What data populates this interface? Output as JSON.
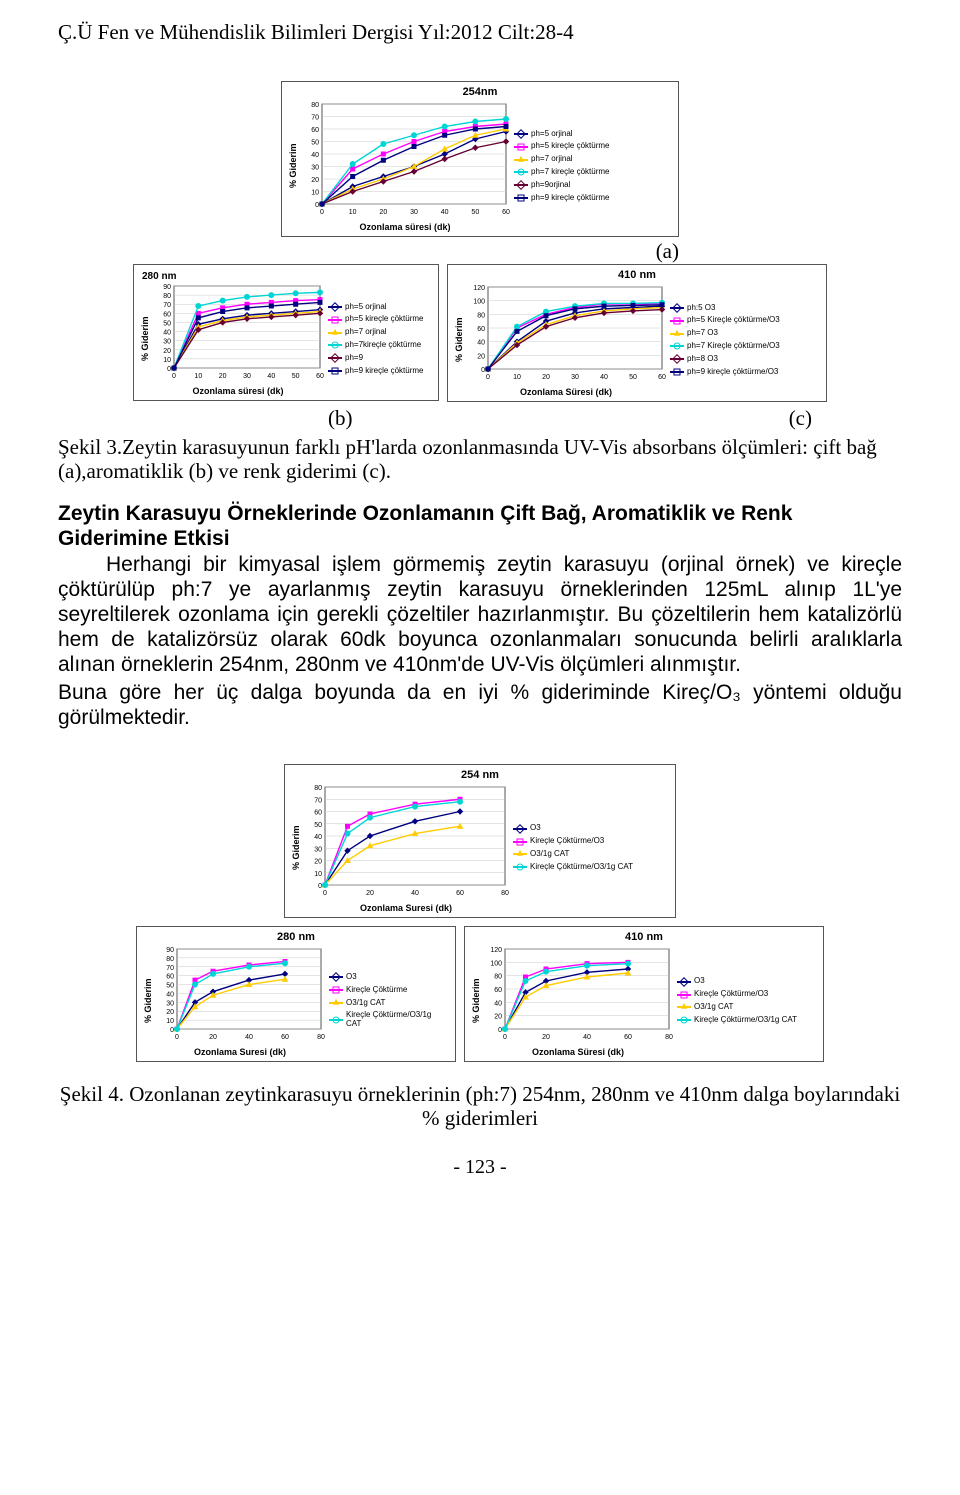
{
  "journal_header": "Ç.Ü Fen ve  Mühendislik Bilimleri Dergisi Yıl:2012  Cilt:28-4",
  "labels": {
    "a": "(a)",
    "b": "(b)",
    "c": "(c)"
  },
  "caption3_prefix": "Şekil 3.",
  "caption3_rest": "Zeytin karasuyunun farklı pH'larda ozonlanmasında UV-Vis absorbans ölçümleri: çift bağ (a),aromatiklik (b) ve renk giderimi (c).",
  "section_heading": "Zeytin Karasuyu Örneklerinde Ozonlamanın Çift Bağ, Aromatiklik ve Renk Giderimine Etkisi",
  "paragraph1": "Herhangi bir kimyasal işlem görmemiş zeytin karasuyu (orjinal örnek) ve kireçle çöktürülüp ph:7 ye ayarlanmış zeytin karasuyu örneklerinden 125mL alınıp 1L'ye seyreltilerek ozonlama için gerekli çözeltiler hazırlanmıştır. Bu çözeltilerin hem katalizörlü hem de katalizörsüz olarak 60dk boyunca ozonlanmaları sonucunda belirli aralıklarla alınan örneklerin 254nm, 280nm ve 410nm'de UV-Vis ölçümleri alınmıştır.",
  "paragraph2": "Buna göre her üç dalga boyunda da en iyi % gideriminde Kireç/O₃ yöntemi olduğu görülmektedir.",
  "caption4": "Şekil 4. Ozonlanan zeytinkarasuyu örneklerinin (ph:7) 254nm, 280nm ve 410nm dalga boylarındaki  % giderimleri",
  "page_number": "- 123 -",
  "axis": {
    "x_label_dk": "Ozonlama süresi (dk)",
    "x_label_Dk": "Ozonlama Süresi (dk)",
    "x_label_suresi": "Ozonlama Suresi (dk)",
    "y_label": "% Giderim"
  },
  "colors": {
    "navy": "#000080",
    "magenta": "#ff00ff",
    "yellow": "#ffcc00",
    "cyan": "#00d5d5",
    "darkred": "#660033",
    "grid": "#c8c8c8",
    "border": "#555555",
    "text": "#000000"
  },
  "chart_254_a": {
    "title": "254nm",
    "xlim": [
      0,
      60
    ],
    "xtick": 10,
    "ylim": [
      0,
      80
    ],
    "ytick": 10,
    "series": [
      {
        "label": "ph=5 orjinal",
        "color": "#000080",
        "marker": "di",
        "data": [
          [
            0,
            0
          ],
          [
            10,
            14
          ],
          [
            20,
            22
          ],
          [
            30,
            30
          ],
          [
            40,
            40
          ],
          [
            50,
            52
          ],
          [
            60,
            58
          ]
        ]
      },
      {
        "label": "ph=5 kireçle çöktürme",
        "color": "#ff00ff",
        "marker": "sq",
        "data": [
          [
            0,
            0
          ],
          [
            10,
            28
          ],
          [
            20,
            40
          ],
          [
            30,
            50
          ],
          [
            40,
            58
          ],
          [
            50,
            62
          ],
          [
            60,
            64
          ]
        ]
      },
      {
        "label": "ph=7 orjinal",
        "color": "#ffcc00",
        "marker": "tr",
        "data": [
          [
            0,
            0
          ],
          [
            10,
            12
          ],
          [
            20,
            20
          ],
          [
            30,
            30
          ],
          [
            40,
            44
          ],
          [
            50,
            55
          ],
          [
            60,
            60
          ]
        ]
      },
      {
        "label": "ph=7 kireçle çöktürme",
        "color": "#00d5d5",
        "marker": "ci",
        "data": [
          [
            0,
            0
          ],
          [
            10,
            32
          ],
          [
            20,
            48
          ],
          [
            30,
            55
          ],
          [
            40,
            62
          ],
          [
            50,
            66
          ],
          [
            60,
            68
          ]
        ]
      },
      {
        "label": "ph=9orjinal",
        "color": "#660033",
        "marker": "di",
        "data": [
          [
            0,
            0
          ],
          [
            10,
            10
          ],
          [
            20,
            18
          ],
          [
            30,
            26
          ],
          [
            40,
            36
          ],
          [
            50,
            45
          ],
          [
            60,
            50
          ]
        ]
      },
      {
        "label": "ph=9 kireçle çöktürme",
        "color": "#000080",
        "marker": "sq",
        "data": [
          [
            0,
            0
          ],
          [
            10,
            22
          ],
          [
            20,
            35
          ],
          [
            30,
            46
          ],
          [
            40,
            55
          ],
          [
            50,
            60
          ],
          [
            60,
            62
          ]
        ]
      }
    ]
  },
  "chart_280_b": {
    "title": "280 nm",
    "xlim": [
      0,
      60
    ],
    "xtick": 10,
    "ylim": [
      0,
      90
    ],
    "ytick": 10,
    "series": [
      {
        "label": "ph=5 orjinal",
        "color": "#000080",
        "marker": "di",
        "data": [
          [
            0,
            0
          ],
          [
            10,
            48
          ],
          [
            20,
            54
          ],
          [
            30,
            58
          ],
          [
            40,
            60
          ],
          [
            50,
            62
          ],
          [
            60,
            64
          ]
        ]
      },
      {
        "label": "ph=5 kireçle çöktürme",
        "color": "#ff00ff",
        "marker": "sq",
        "data": [
          [
            0,
            0
          ],
          [
            10,
            60
          ],
          [
            20,
            66
          ],
          [
            30,
            70
          ],
          [
            40,
            72
          ],
          [
            50,
            74
          ],
          [
            60,
            75
          ]
        ]
      },
      {
        "label": "ph=7 orjinal",
        "color": "#ffcc00",
        "marker": "tr",
        "data": [
          [
            0,
            0
          ],
          [
            10,
            45
          ],
          [
            20,
            52
          ],
          [
            30,
            56
          ],
          [
            40,
            58
          ],
          [
            50,
            60
          ],
          [
            60,
            62
          ]
        ]
      },
      {
        "label": "ph=7kireçle çöktürme",
        "color": "#00d5d5",
        "marker": "ci",
        "data": [
          [
            0,
            0
          ],
          [
            10,
            68
          ],
          [
            20,
            74
          ],
          [
            30,
            78
          ],
          [
            40,
            80
          ],
          [
            50,
            82
          ],
          [
            60,
            83
          ]
        ]
      },
      {
        "label": "ph=9",
        "color": "#660033",
        "marker": "di",
        "data": [
          [
            0,
            0
          ],
          [
            10,
            42
          ],
          [
            20,
            50
          ],
          [
            30,
            54
          ],
          [
            40,
            56
          ],
          [
            50,
            58
          ],
          [
            60,
            60
          ]
        ]
      },
      {
        "label": "ph=9 kireçle çöktürme",
        "color": "#000080",
        "marker": "sq",
        "data": [
          [
            0,
            0
          ],
          [
            10,
            55
          ],
          [
            20,
            62
          ],
          [
            30,
            66
          ],
          [
            40,
            68
          ],
          [
            50,
            70
          ],
          [
            60,
            72
          ]
        ]
      }
    ]
  },
  "chart_410_c": {
    "title": "410 nm",
    "xlim": [
      0,
      60
    ],
    "xtick": 10,
    "ylim": [
      0,
      120
    ],
    "ytick": 20,
    "series": [
      {
        "label": "ph:5 O3",
        "color": "#000080",
        "marker": "di",
        "data": [
          [
            0,
            0
          ],
          [
            10,
            40
          ],
          [
            20,
            70
          ],
          [
            30,
            82
          ],
          [
            40,
            88
          ],
          [
            50,
            90
          ],
          [
            60,
            92
          ]
        ]
      },
      {
        "label": "ph=5 Kireçle çöktürme/O3",
        "color": "#ff00ff",
        "marker": "sq",
        "data": [
          [
            0,
            0
          ],
          [
            10,
            60
          ],
          [
            20,
            80
          ],
          [
            30,
            90
          ],
          [
            40,
            95
          ],
          [
            50,
            95
          ],
          [
            60,
            96
          ]
        ]
      },
      {
        "label": "ph=7 O3",
        "color": "#ffcc00",
        "marker": "tr",
        "data": [
          [
            0,
            0
          ],
          [
            10,
            38
          ],
          [
            20,
            65
          ],
          [
            30,
            78
          ],
          [
            40,
            85
          ],
          [
            50,
            88
          ],
          [
            60,
            90
          ]
        ]
      },
      {
        "label": "ph=7 Kireçle çöktürme/O3",
        "color": "#00d5d5",
        "marker": "ci",
        "data": [
          [
            0,
            0
          ],
          [
            10,
            62
          ],
          [
            20,
            84
          ],
          [
            30,
            92
          ],
          [
            40,
            96
          ],
          [
            50,
            96
          ],
          [
            60,
            97
          ]
        ]
      },
      {
        "label": "ph=8 O3",
        "color": "#660033",
        "marker": "di",
        "data": [
          [
            0,
            0
          ],
          [
            10,
            35
          ],
          [
            20,
            62
          ],
          [
            30,
            75
          ],
          [
            40,
            82
          ],
          [
            50,
            85
          ],
          [
            60,
            87
          ]
        ]
      },
      {
        "label": "ph=9 kireçle çöktürme/O3",
        "color": "#000080",
        "marker": "sq",
        "data": [
          [
            0,
            0
          ],
          [
            10,
            55
          ],
          [
            20,
            78
          ],
          [
            30,
            88
          ],
          [
            40,
            92
          ],
          [
            50,
            93
          ],
          [
            60,
            94
          ]
        ]
      }
    ]
  },
  "chart_254_s4": {
    "title": "254 nm",
    "xlim": [
      0,
      80
    ],
    "xtick": 20,
    "ylim": [
      0,
      80
    ],
    "ytick": 10,
    "series": [
      {
        "label": "O3",
        "color": "#000080",
        "marker": "di",
        "data": [
          [
            0,
            0
          ],
          [
            10,
            28
          ],
          [
            20,
            40
          ],
          [
            40,
            52
          ],
          [
            60,
            60
          ]
        ]
      },
      {
        "label": "Kireçle Çöktürme/O3",
        "color": "#ff00ff",
        "marker": "sq",
        "data": [
          [
            0,
            0
          ],
          [
            10,
            48
          ],
          [
            20,
            58
          ],
          [
            40,
            66
          ],
          [
            60,
            70
          ]
        ]
      },
      {
        "label": "O3/1g CAT",
        "color": "#ffcc00",
        "marker": "tr",
        "data": [
          [
            0,
            0
          ],
          [
            10,
            20
          ],
          [
            20,
            32
          ],
          [
            40,
            42
          ],
          [
            60,
            48
          ]
        ]
      },
      {
        "label": "Kireçle Çöktürme/O3/1g CAT",
        "color": "#00d5d5",
        "marker": "ci",
        "data": [
          [
            0,
            0
          ],
          [
            10,
            42
          ],
          [
            20,
            55
          ],
          [
            40,
            64
          ],
          [
            60,
            68
          ]
        ]
      }
    ]
  },
  "chart_280_s4": {
    "title": "280 nm",
    "xlim": [
      0,
      80
    ],
    "xtick": 20,
    "ylim": [
      0,
      90
    ],
    "ytick": 10,
    "series": [
      {
        "label": "O3",
        "color": "#000080",
        "marker": "di",
        "data": [
          [
            0,
            0
          ],
          [
            10,
            30
          ],
          [
            20,
            42
          ],
          [
            40,
            55
          ],
          [
            60,
            62
          ]
        ]
      },
      {
        "label": "Kireçle Çöktürme",
        "color": "#ff00ff",
        "marker": "sq",
        "data": [
          [
            0,
            0
          ],
          [
            10,
            55
          ],
          [
            20,
            65
          ],
          [
            40,
            72
          ],
          [
            60,
            76
          ]
        ]
      },
      {
        "label": "O3/1g CAT",
        "color": "#ffcc00",
        "marker": "tr",
        "data": [
          [
            0,
            0
          ],
          [
            10,
            25
          ],
          [
            20,
            38
          ],
          [
            40,
            50
          ],
          [
            60,
            56
          ]
        ]
      },
      {
        "label": "Kireçle Çöktürme/O3/1g CAT",
        "color": "#00d5d5",
        "marker": "ci",
        "data": [
          [
            0,
            0
          ],
          [
            10,
            50
          ],
          [
            20,
            62
          ],
          [
            40,
            70
          ],
          [
            60,
            74
          ]
        ]
      }
    ]
  },
  "chart_410_s4": {
    "title": "410 nm",
    "xlim": [
      0,
      80
    ],
    "xtick": 20,
    "ylim": [
      0,
      120
    ],
    "ytick": 20,
    "series": [
      {
        "label": "O3",
        "color": "#000080",
        "marker": "di",
        "data": [
          [
            0,
            0
          ],
          [
            10,
            55
          ],
          [
            20,
            72
          ],
          [
            40,
            85
          ],
          [
            60,
            90
          ]
        ]
      },
      {
        "label": "Kireçle Çöktürme/O3",
        "color": "#ff00ff",
        "marker": "sq",
        "data": [
          [
            0,
            0
          ],
          [
            10,
            78
          ],
          [
            20,
            90
          ],
          [
            40,
            98
          ],
          [
            60,
            100
          ]
        ]
      },
      {
        "label": "O3/1g CAT",
        "color": "#ffcc00",
        "marker": "tr",
        "data": [
          [
            0,
            0
          ],
          [
            10,
            48
          ],
          [
            20,
            65
          ],
          [
            40,
            78
          ],
          [
            60,
            84
          ]
        ]
      },
      {
        "label": "Kireçle Çöktürme/O3/1g CAT",
        "color": "#00d5d5",
        "marker": "ci",
        "data": [
          [
            0,
            0
          ],
          [
            10,
            72
          ],
          [
            20,
            86
          ],
          [
            40,
            95
          ],
          [
            60,
            98
          ]
        ]
      }
    ]
  }
}
